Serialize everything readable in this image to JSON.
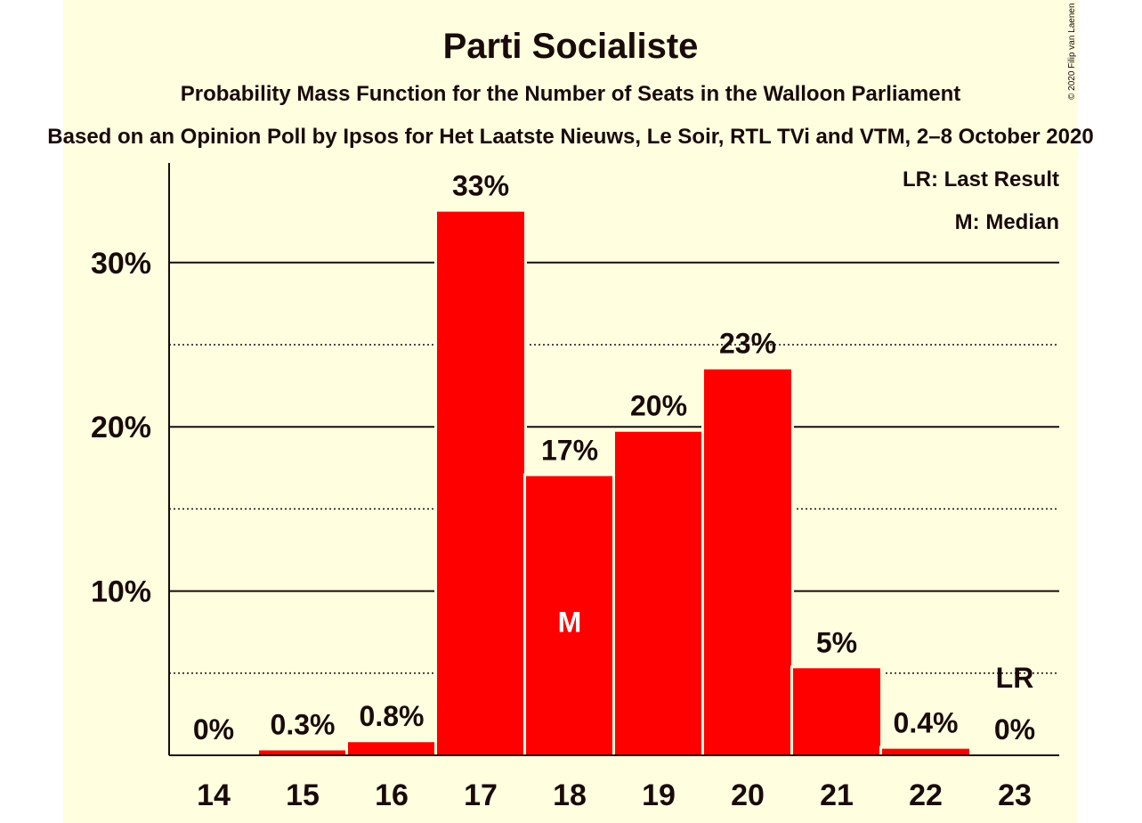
{
  "chart_data": {
    "type": "bar",
    "title": "Parti Socialiste",
    "subtitle": "Probability Mass Function for the Number of Seats in the Walloon Parliament",
    "subtitle2": "Based on an Opinion Poll by Ipsos for Het Laatste Nieuws, Le Soir, RTL TVi and VTM, 2–8 October 2020",
    "copyright": "© 2020 Filip van Laenen",
    "legend": [
      "LR: Last Result",
      "M: Median"
    ],
    "categories": [
      "14",
      "15",
      "16",
      "17",
      "18",
      "19",
      "20",
      "21",
      "22",
      "23"
    ],
    "values": [
      0,
      0.3,
      0.8,
      33.1,
      17.0,
      19.7,
      23.5,
      5.3,
      0.4,
      0
    ],
    "value_labels": [
      "0%",
      "0.3%",
      "0.8%",
      "33%",
      "17%",
      "20%",
      "23%",
      "5%",
      "0.4%",
      "0%"
    ],
    "yticks": [
      10,
      20,
      30
    ],
    "ytick_labels": [
      "10%",
      "20%",
      "30%"
    ],
    "minor_gridlines": [
      5,
      15,
      25
    ],
    "ylim": [
      0,
      36
    ],
    "median_category": "18",
    "median_marker": "M",
    "last_result_category": "23",
    "last_result_marker": "LR",
    "bar_color": "#ff0000"
  }
}
